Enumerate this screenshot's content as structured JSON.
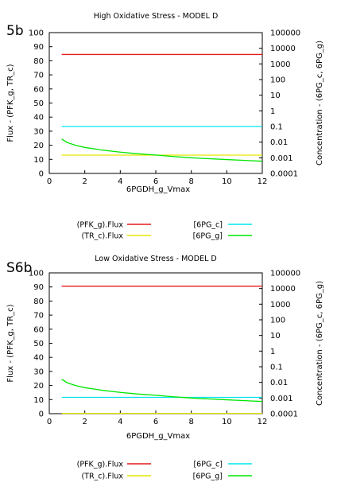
{
  "chart_data": [
    {
      "type": "line",
      "panel_label": "5b",
      "title": "High Oxidative Stress - MODEL D",
      "xlabel": "6PGDH_g_Vmax",
      "ylabel": "Flux - (PFK_g, TR_c)",
      "y2label": "Concentration - (6PG_c, 6PG_g)",
      "xlim": [
        0,
        12
      ],
      "ylim": [
        0,
        100
      ],
      "y2lim": [
        0.0001,
        100000
      ],
      "y2scale": "log",
      "xticks": [
        "0",
        "2",
        "4",
        "6",
        "8",
        "10",
        "12"
      ],
      "yticks": [
        "0",
        "10",
        "20",
        "30",
        "40",
        "50",
        "60",
        "70",
        "80",
        "90",
        "100"
      ],
      "y2ticks": [
        "0.0001",
        "0.001",
        "0.01",
        "0.1",
        "1",
        "10",
        "100",
        "1000",
        "10000",
        "100000"
      ],
      "grid": false,
      "legend_position": "below",
      "x": [
        0.7,
        1,
        1.5,
        2,
        3,
        4,
        5,
        6,
        7,
        8,
        9,
        10,
        11,
        12
      ],
      "series": [
        {
          "name": "(PFK_g).Flux",
          "axis": "y",
          "color": "#e41a1c",
          "values": [
            84.5,
            84.5,
            84.5,
            84.5,
            84.5,
            84.5,
            84.5,
            84.5,
            84.5,
            84.5,
            84.5,
            84.5,
            84.5,
            84.5
          ]
        },
        {
          "name": "(TR_c).Flux",
          "axis": "y",
          "color": "#e6e600",
          "values": [
            13,
            13,
            13,
            13,
            13,
            13,
            13,
            13,
            13,
            13,
            13,
            13,
            13,
            13
          ]
        },
        {
          "name": "[6PG_c]",
          "axis": "y2",
          "color": "#00e5ee",
          "values": [
            0.1,
            0.1,
            0.1,
            0.1,
            0.1,
            0.1,
            0.1,
            0.1,
            0.1,
            0.1,
            0.1,
            0.1,
            0.1,
            0.1
          ]
        },
        {
          "name": "[6PG_g]",
          "axis": "y2",
          "color": "#00e600",
          "values": [
            0.016,
            0.0095,
            0.0062,
            0.0046,
            0.0031,
            0.0023,
            0.0018,
            0.0015,
            0.0012,
            0.001,
            0.00087,
            0.00077,
            0.00068,
            0.0006
          ]
        }
      ]
    },
    {
      "type": "line",
      "panel_label": "S6b",
      "title": "Low Oxidative Stress - MODEL D",
      "xlabel": "6PGDH_g_Vmax",
      "ylabel": "Flux - (PFK_g, TR_c)",
      "y2label": "Concentration - (6PG_c, 6PG_g)",
      "xlim": [
        0,
        12
      ],
      "ylim": [
        0,
        100
      ],
      "y2lim": [
        0.0001,
        100000
      ],
      "y2scale": "log",
      "xticks": [
        "0",
        "2",
        "4",
        "6",
        "8",
        "10",
        "12"
      ],
      "yticks": [
        "0",
        "10",
        "20",
        "30",
        "40",
        "50",
        "60",
        "70",
        "80",
        "90",
        "100"
      ],
      "y2ticks": [
        "0.0001",
        "0.001",
        "0.01",
        "0.1",
        "1",
        "10",
        "100",
        "1000",
        "10000",
        "100000"
      ],
      "grid": false,
      "legend_position": "below",
      "x": [
        0.7,
        1,
        1.5,
        2,
        3,
        4,
        5,
        6,
        7,
        8,
        9,
        10,
        11,
        12
      ],
      "series": [
        {
          "name": "(PFK_g).Flux",
          "axis": "y",
          "color": "#e41a1c",
          "values": [
            90.5,
            90.5,
            90.5,
            90.5,
            90.5,
            90.5,
            90.5,
            90.5,
            90.5,
            90.5,
            90.5,
            90.5,
            90.5,
            90.5
          ]
        },
        {
          "name": "(TR_c).Flux",
          "axis": "y",
          "color": "#e6e600",
          "values": [
            0.2,
            0.2,
            0.2,
            0.2,
            0.2,
            0.2,
            0.2,
            0.2,
            0.2,
            0.2,
            0.2,
            0.2,
            0.2,
            0.2
          ]
        },
        {
          "name": "[6PG_c]",
          "axis": "y2",
          "color": "#00e5ee",
          "values": [
            0.0011,
            0.0011,
            0.0011,
            0.0011,
            0.0011,
            0.0011,
            0.0011,
            0.0011,
            0.0011,
            0.0011,
            0.0011,
            0.0011,
            0.0011,
            0.0011
          ]
        },
        {
          "name": "[6PG_g]",
          "axis": "y2",
          "color": "#00e600",
          "values": [
            0.016,
            0.0095,
            0.0062,
            0.0046,
            0.0031,
            0.0023,
            0.0018,
            0.0015,
            0.0012,
            0.001,
            0.00087,
            0.00077,
            0.00068,
            0.0006
          ]
        }
      ]
    }
  ]
}
